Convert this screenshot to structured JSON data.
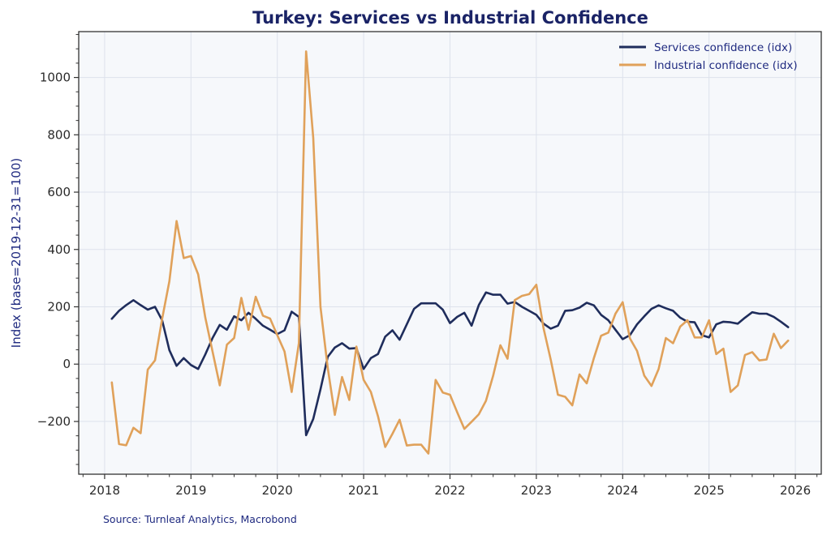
{
  "chart_data": {
    "type": "line",
    "title": "Turkey: Services vs Industrial Confidence",
    "xlabel": "",
    "ylabel": "Index (base=2019-12-31=100)",
    "source": "Source: Turnleaf Analytics, Macrobond",
    "xlim": [
      2017.7,
      2026.3
    ],
    "ylim": [
      -384,
      1160
    ],
    "x_ticks": [
      "2018",
      "2019",
      "2020",
      "2021",
      "2022",
      "2023",
      "2024",
      "2025",
      "2026"
    ],
    "y_ticks": [
      "−200",
      "0",
      "200",
      "400",
      "600",
      "800",
      "1000"
    ],
    "y_tick_values": [
      -200,
      0,
      200,
      400,
      600,
      800,
      1000
    ],
    "grid": true,
    "legend_position": "top-right",
    "x_start": "2018-02",
    "x_frequency": "monthly",
    "x_end": "2025-12",
    "series": [
      {
        "name": "Services confidence (idx)",
        "color": "#1f2d5c",
        "values": [
          158,
          186,
          206,
          223,
          206,
          190,
          200,
          153,
          49,
          -6,
          21,
          -3,
          -17,
          34,
          91,
          137,
          120,
          167,
          153,
          179,
          158,
          134,
          120,
          105,
          118,
          183,
          165,
          -248,
          -191,
          -88,
          25,
          58,
          73,
          54,
          56,
          -17,
          21,
          35,
          96,
          118,
          85,
          139,
          193,
          212,
          212,
          212,
          190,
          143,
          165,
          179,
          134,
          206,
          250,
          242,
          242,
          211,
          217,
          200,
          186,
          172,
          141,
          124,
          134,
          186,
          188,
          197,
          214,
          205,
          172,
          153,
          120,
          87,
          101,
          139,
          167,
          193,
          205,
          195,
          186,
          162,
          148,
          146,
          101,
          93,
          139,
          148,
          146,
          141,
          162,
          181,
          176,
          176,
          165,
          148,
          129
        ]
      },
      {
        "name": "Industrial confidence (idx)",
        "color": "#e0a15a",
        "values": [
          -64,
          -279,
          -283,
          -222,
          -241,
          -19,
          13,
          158,
          289,
          499,
          370,
          377,
          313,
          162,
          44,
          -74,
          68,
          91,
          231,
          120,
          235,
          169,
          159,
          101,
          44,
          -97,
          73,
          1091,
          789,
          200,
          -12,
          -177,
          -45,
          -125,
          61,
          -55,
          -97,
          -182,
          -289,
          -243,
          -194,
          -284,
          -281,
          -281,
          -312,
          -55,
          -99,
          -107,
          -168,
          -226,
          -201,
          -175,
          -128,
          -40,
          66,
          19,
          223,
          238,
          244,
          277,
          125,
          16,
          -107,
          -114,
          -144,
          -36,
          -67,
          21,
          99,
          110,
          176,
          216,
          90,
          46,
          -40,
          -76,
          -17,
          91,
          73,
          131,
          153,
          93,
          93,
          153,
          35,
          54,
          -97,
          -74,
          32,
          42,
          13,
          16,
          106,
          56,
          82
        ]
      }
    ]
  }
}
